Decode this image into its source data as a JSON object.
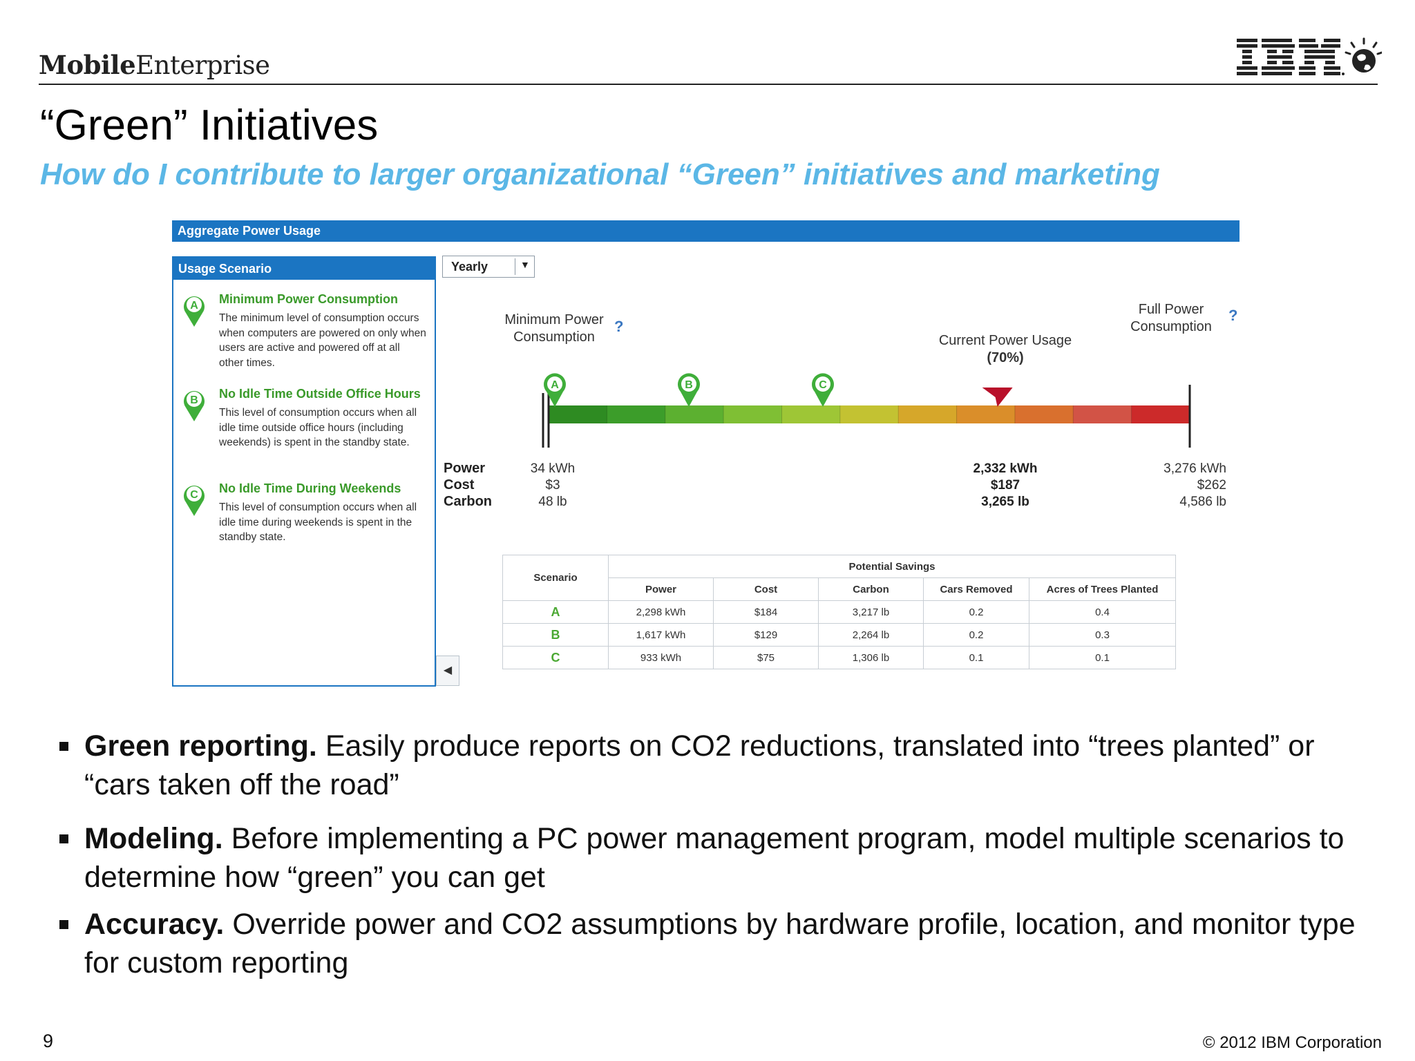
{
  "header": {
    "brand_bold": "Mobile",
    "brand_regular": "Enterprise",
    "logo_text": "IBM"
  },
  "slide": {
    "title": "“Green” Initiatives",
    "subtitle": "How do I contribute to larger organizational “Green” initiatives and marketing"
  },
  "app": {
    "panel_title": "Aggregate Power Usage",
    "scenario_panel_title": "Usage Scenario",
    "period_select": "Yearly",
    "scenarios": [
      {
        "letter": "A",
        "title": "Minimum Power Consumption",
        "desc": "The minimum level of consumption occurs when computers are powered on only when users are active and powered off at all other times."
      },
      {
        "letter": "B",
        "title": "No Idle Time Outside Office Hours",
        "desc": "This level of consumption occurs when all idle time outside office hours (including weekends) is spent in the standby state."
      },
      {
        "letter": "C",
        "title": "No Idle Time During Weekends",
        "desc": "This level of consumption occurs when all idle time during weekends is spent in the standby state."
      }
    ],
    "gauge": {
      "min_label": "Minimum Power Consumption",
      "max_label": "Full Power Consumption",
      "current_label": "Current Power Usage",
      "current_pct": "(70%)",
      "current_fraction": 0.7,
      "help": "?",
      "row_labels": [
        "Power",
        "Cost",
        "Carbon"
      ],
      "min_values": [
        "34 kWh",
        "$3",
        "48 lb"
      ],
      "current_values": [
        "2,332 kWh",
        "$187",
        "3,265 lb"
      ],
      "max_values": [
        "3,276 kWh",
        "$262",
        "4,586 lb"
      ],
      "segment_colors": [
        "#2e8b22",
        "#3c9d2a",
        "#5cb030",
        "#7fbf34",
        "#9ec636",
        "#c3c232",
        "#d6a72a",
        "#da8e2a",
        "#d9702e",
        "#d25346",
        "#cc2a2a"
      ]
    },
    "savings": {
      "scenario_header": "Scenario",
      "group_header": "Potential Savings",
      "columns": [
        "Power",
        "Cost",
        "Carbon",
        "Cars Removed",
        "Acres of Trees Planted"
      ],
      "rows": [
        {
          "scenario": "A",
          "power": "2,298 kWh",
          "cost": "$184",
          "carbon": "3,217 lb",
          "cars": "0.2",
          "acres": "0.4"
        },
        {
          "scenario": "B",
          "power": "1,617 kWh",
          "cost": "$129",
          "carbon": "2,264 lb",
          "cars": "0.2",
          "acres": "0.3"
        },
        {
          "scenario": "C",
          "power": "933 kWh",
          "cost": "$75",
          "carbon": "1,306 lb",
          "cars": "0.1",
          "acres": "0.1"
        }
      ]
    }
  },
  "bullets": [
    {
      "lead": "Green reporting.",
      "text": " Easily produce reports on CO2 reductions, translated into “trees planted” or “cars taken off the road”"
    },
    {
      "lead": "Modeling.",
      "text": " Before implementing a PC power management program, model multiple scenarios to determine how “green” you can get"
    },
    {
      "lead": "Accuracy.",
      "text": " Override power and CO2 assumptions by hardware profile, location, and monitor type for custom reporting"
    }
  ],
  "footer": {
    "page_number": "9",
    "copyright": "© 2012 IBM Corporation"
  },
  "colors": {
    "accent_blue": "#1b75c2",
    "subtitle_blue": "#5bb7e6",
    "scenario_green": "#3a9a2a",
    "marker_red": "#b8102a"
  }
}
